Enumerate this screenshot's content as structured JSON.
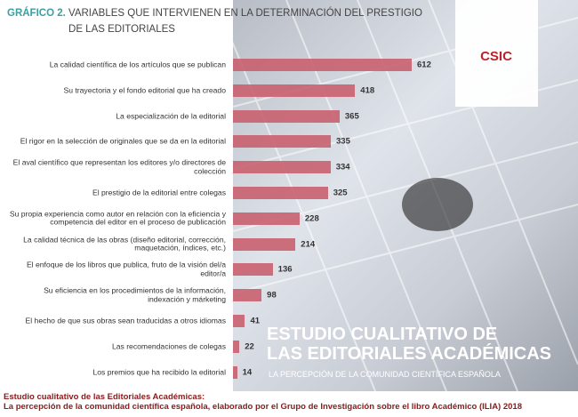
{
  "chart_data": {
    "type": "bar",
    "orientation": "horizontal",
    "title_number": "GRÁFICO 2.",
    "title": "VARIABLES QUE INTERVIENEN EN LA DETERMINACIÓN DEL PRESTIGIO DE LAS EDITORIALES",
    "categories": [
      "La calidad científica de los artículos que se publican",
      "Su trayectoria y el fondo editorial que ha creado",
      "La especialización de la editorial",
      "El rigor en la selección de originales que se da en la editorial",
      "El aval científico que representan los editores y/o directores de colección",
      "El prestigio de la editorial entre colegas",
      "Su propia experiencia como autor en relación con la eficiencia y competencia del editor en el proceso de publicación",
      "La calidad técnica de las obras (diseño editorial, corrección, maquetación, índices, etc.)",
      "El enfoque de los libros que publica, fruto de la visión del/a editor/a",
      "Su eficiencia en los procedimientos de la información, indexación y márketing",
      "El hecho de que sus obras sean traducidas a otros idiomas",
      "Las recomendaciones de colegas",
      "Los premios que ha recibido la editorial"
    ],
    "values": [
      612,
      418,
      365,
      335,
      334,
      325,
      228,
      214,
      136,
      98,
      41,
      22,
      14
    ],
    "color": "#c9606f"
  },
  "background": {
    "logo": "CSIC",
    "cover_title": [
      "ESTUDIO CUALITATIVO DE",
      "LAS EDITORIALES ACADÉMICAS"
    ],
    "cover_subtitle": "LA PERCEPCIÓN DE LA COMUNIDAD CIENTÍFICA ESPAÑOLA"
  },
  "source": [
    "Estudio cualitativo de las Editoriales Académicas:",
    "La percepción de la comunidad científica española, elaborado por el Grupo de Investigación sobre el libro Académico (ILIA) 2018"
  ]
}
